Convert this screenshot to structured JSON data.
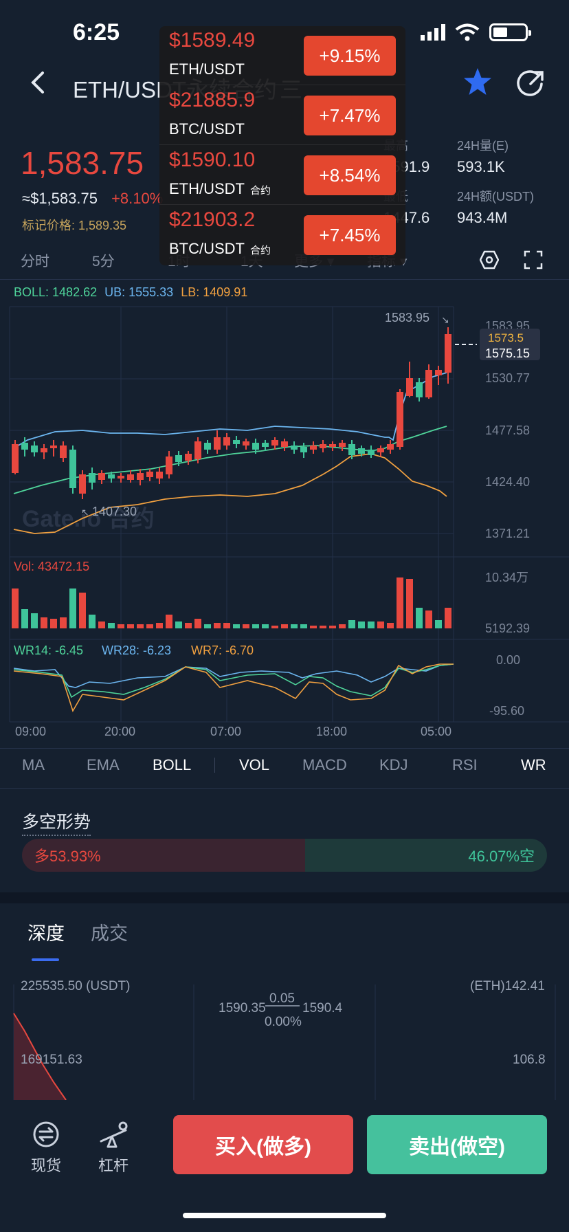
{
  "status": {
    "time": "6:25"
  },
  "header": {
    "title": "ETH/USDT永续合约",
    "menu_glyph": "三"
  },
  "ticker": {
    "price": "1,583.75",
    "usd_price": "≈$1,583.75",
    "change": "+8.10%",
    "mark_price": "标记价格: 1,589.35",
    "high_label": "最高",
    "high_value": "1591.9",
    "low_label": "最低",
    "low_value": "1447.6",
    "vol_e_label": "24H量(E)",
    "vol_e_value": "593.1K",
    "vol_usdt_label": "24H额(USDT)",
    "vol_usdt_value": "943.4M"
  },
  "intervals": [
    "分时",
    "5分",
    "1时",
    "1天",
    "更多",
    "指标"
  ],
  "boll": {
    "boll": "BOLL: 1482.62",
    "ub": "UB: 1555.33",
    "lb": "LB: 1409.91"
  },
  "price_axis": [
    "1583.95",
    "1530.77",
    "1477.58",
    "1424.40",
    "1371.21"
  ],
  "price_tags": {
    "high_marker": "1583.95",
    "current_mark": "1573.5",
    "current": "1575.15",
    "low_marker": "1407.30"
  },
  "watermark": "Gate.io 合约",
  "volume": {
    "label": "Vol: 43472.15",
    "axis_top": "10.34万",
    "axis_bottom": "5192.39"
  },
  "wr": {
    "wr14": "WR14: -6.45",
    "wr28": "WR28: -6.23",
    "wr7": "WR7: -6.70",
    "axis_top": "0.00",
    "axis_bottom": "-95.60"
  },
  "time_axis": [
    "09:00",
    "20:00",
    "07:00",
    "18:00",
    "05:00"
  ],
  "indicator_tabs": [
    "MA",
    "EMA",
    "BOLL",
    "VOL",
    "MACD",
    "KDJ",
    "RSI",
    "WR"
  ],
  "sentiment": {
    "title": "多空形势",
    "long": "多53.93%",
    "short": "46.07%空",
    "long_fraction": 0.5393
  },
  "depth": {
    "tabs": [
      "深度",
      "成交"
    ],
    "left_top": "225535.50 (USDT)",
    "right_top": "(ETH)142.41",
    "left_mid": "169151.63",
    "right_mid": "106.8",
    "bid": "1590.35",
    "spread": "0.05",
    "ask": "1590.4",
    "spread_pct": "0.00%"
  },
  "bottom_nav": {
    "spot": "现货",
    "leverage": "杠杆",
    "buy": "买入(做多)",
    "sell": "卖出(做空)"
  },
  "overlay": [
    {
      "price": "$1589.49",
      "pair": "ETH/USDT",
      "tag": "",
      "change": "+9.15%"
    },
    {
      "price": "$21885.9",
      "pair": "BTC/USDT",
      "tag": "",
      "change": "+7.47%"
    },
    {
      "price": "$1590.10",
      "pair": "ETH/USDT",
      "tag": "合约",
      "change": "+8.54%"
    },
    {
      "price": "$21903.2",
      "pair": "BTC/USDT",
      "tag": "合约",
      "change": "+7.45%"
    }
  ],
  "colors": {
    "up": "#e8483f",
    "down": "#3fc49a",
    "bg": "#15202f",
    "boll_mid": "#4fd49a",
    "boll_ub": "#6cb6f0",
    "boll_lb": "#f0a040"
  }
}
